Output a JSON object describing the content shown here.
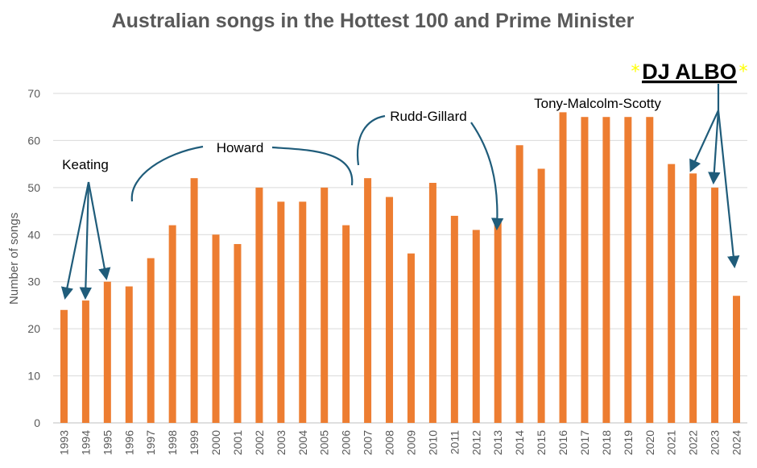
{
  "chart_data": {
    "type": "bar",
    "title": "Australian songs in the Hottest 100 and Prime Minister",
    "xlabel": "",
    "ylabel": "Number of songs",
    "ylim": [
      0,
      70
    ],
    "yticks": [
      0,
      10,
      20,
      30,
      40,
      50,
      60,
      70
    ],
    "grid": true,
    "categories": [
      "1993",
      "1994",
      "1995",
      "1996",
      "1997",
      "1998",
      "1999",
      "2000",
      "2001",
      "2002",
      "2003",
      "2004",
      "2005",
      "2006",
      "2007",
      "2008",
      "2009",
      "2010",
      "2011",
      "2012",
      "2013",
      "2014",
      "2015",
      "2016",
      "2017",
      "2018",
      "2019",
      "2020",
      "2021",
      "2022",
      "2023",
      "2024"
    ],
    "values": [
      24,
      26,
      30,
      29,
      35,
      42,
      52,
      40,
      38,
      50,
      47,
      47,
      50,
      42,
      52,
      48,
      36,
      51,
      44,
      41,
      43,
      59,
      54,
      66,
      65,
      65,
      65,
      65,
      55,
      53,
      50,
      27
    ],
    "bar_color": "#ED7D31",
    "grid_color": "#D9D9D9",
    "arrow_color": "#1F5C7A",
    "annotations": [
      {
        "text": "Keating"
      },
      {
        "text": "Howard"
      },
      {
        "text": "Rudd-Gillard"
      },
      {
        "text": "Tony-Malcolm-Scotty"
      },
      {
        "text": "DJ ALBO"
      }
    ],
    "star_glyph": "*"
  }
}
